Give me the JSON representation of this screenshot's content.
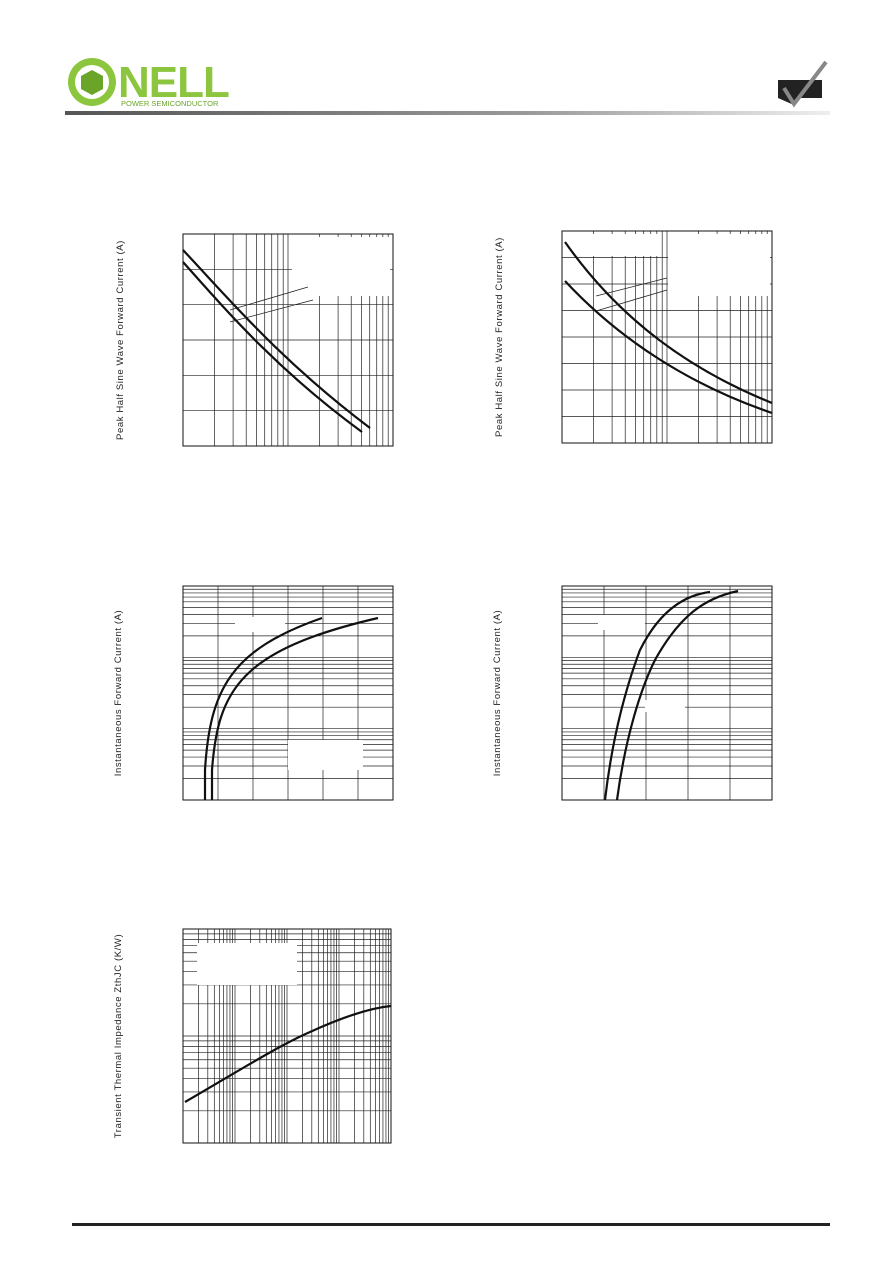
{
  "header": {
    "brand": "NELL",
    "tagline": "POWER SEMICONDUCTOR"
  },
  "charts": [
    {
      "y_label": "Peak Half Sine Wave Forward Current (A)"
    },
    {
      "y_label": "Peak Half Sine Wave Forward Current (A)"
    },
    {
      "y_label": "Instantaneous Forward Current (A)"
    },
    {
      "y_label": "Instantaneous Forward Current (A)"
    },
    {
      "y_label": "Transient Thermal Impedance ZthJC (K/W)"
    }
  ]
}
